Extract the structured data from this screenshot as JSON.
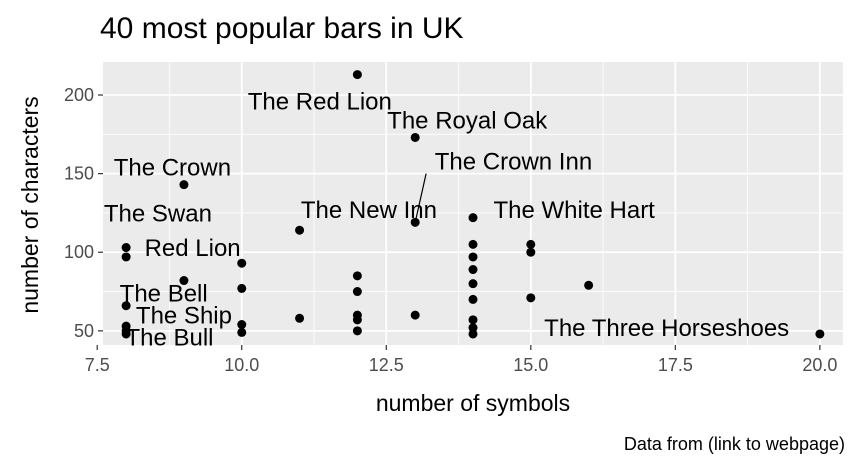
{
  "chart_data": {
    "type": "scatter",
    "title": "40 most popular bars in UK",
    "xlabel": "number of symbols",
    "ylabel": "number of characters",
    "caption": "Data from (link to webpage)",
    "xlim": [
      7.6,
      20.4
    ],
    "ylim": [
      41,
      221
    ],
    "xticks": [
      7.5,
      10.0,
      12.5,
      15.0,
      17.5,
      20.0
    ],
    "xtick_labels": [
      "7.5",
      "10.0",
      "12.5",
      "15.0",
      "17.5",
      "20.0"
    ],
    "yticks": [
      50,
      100,
      150,
      200
    ],
    "ytick_labels": [
      "50",
      "100",
      "150",
      "200"
    ],
    "grid": true,
    "background": "#ebebeb",
    "point_color": "#000000",
    "points": [
      {
        "x": 8,
        "y": 48
      },
      {
        "x": 8,
        "y": 50
      },
      {
        "x": 8,
        "y": 53
      },
      {
        "x": 8,
        "y": 66
      },
      {
        "x": 8,
        "y": 97
      },
      {
        "x": 8,
        "y": 103
      },
      {
        "x": 9,
        "y": 82
      },
      {
        "x": 9,
        "y": 143
      },
      {
        "x": 10,
        "y": 49
      },
      {
        "x": 10,
        "y": 54
      },
      {
        "x": 10,
        "y": 77
      },
      {
        "x": 10,
        "y": 93
      },
      {
        "x": 11,
        "y": 58
      },
      {
        "x": 11,
        "y": 114
      },
      {
        "x": 12,
        "y": 50
      },
      {
        "x": 12,
        "y": 57
      },
      {
        "x": 12,
        "y": 60
      },
      {
        "x": 12,
        "y": 75
      },
      {
        "x": 12,
        "y": 85
      },
      {
        "x": 12,
        "y": 213
      },
      {
        "x": 13,
        "y": 60
      },
      {
        "x": 13,
        "y": 119
      },
      {
        "x": 13,
        "y": 173
      },
      {
        "x": 14,
        "y": 48
      },
      {
        "x": 14,
        "y": 52
      },
      {
        "x": 14,
        "y": 57
      },
      {
        "x": 14,
        "y": 70
      },
      {
        "x": 14,
        "y": 80
      },
      {
        "x": 14,
        "y": 89
      },
      {
        "x": 14,
        "y": 97
      },
      {
        "x": 14,
        "y": 105
      },
      {
        "x": 14,
        "y": 122
      },
      {
        "x": 15,
        "y": 71
      },
      {
        "x": 15,
        "y": 100
      },
      {
        "x": 15,
        "y": 105
      },
      {
        "x": 16,
        "y": 79
      },
      {
        "x": 20,
        "y": 48
      }
    ],
    "labels": [
      {
        "text": "The Red Lion",
        "x": 12,
        "y": 213,
        "lx": 11.35,
        "ly": 196
      },
      {
        "text": "The Royal Oak",
        "x": 13,
        "y": 173,
        "lx": 13.9,
        "ly": 184
      },
      {
        "text": "The Crown Inn",
        "x": 13,
        "y": 119,
        "lx": 14.7,
        "ly": 158
      },
      {
        "text": "The Crown",
        "x": 9,
        "y": 143,
        "lx": 8.8,
        "ly": 154
      },
      {
        "text": "The Swan",
        "x": 8,
        "y": 103,
        "lx": 8.55,
        "ly": 125
      },
      {
        "text": "The New Inn",
        "x": 11,
        "y": 114,
        "lx": 12.2,
        "ly": 127
      },
      {
        "text": "The White Hart",
        "x": 14,
        "y": 122,
        "lx": 15.75,
        "ly": 127
      },
      {
        "text": "Red Lion",
        "x": 8,
        "y": 97,
        "lx": 9.15,
        "ly": 103
      },
      {
        "text": "The Bell",
        "x": 8,
        "y": 66,
        "lx": 8.65,
        "ly": 74
      },
      {
        "text": "The Ship",
        "x": 8,
        "y": 53,
        "lx": 9.0,
        "ly": 60
      },
      {
        "text": "The Bull",
        "x": 8,
        "y": 48,
        "lx": 8.75,
        "ly": 46
      },
      {
        "text": "The Three Horseshoes",
        "x": 20,
        "y": 48,
        "lx": 17.35,
        "ly": 52
      }
    ]
  }
}
